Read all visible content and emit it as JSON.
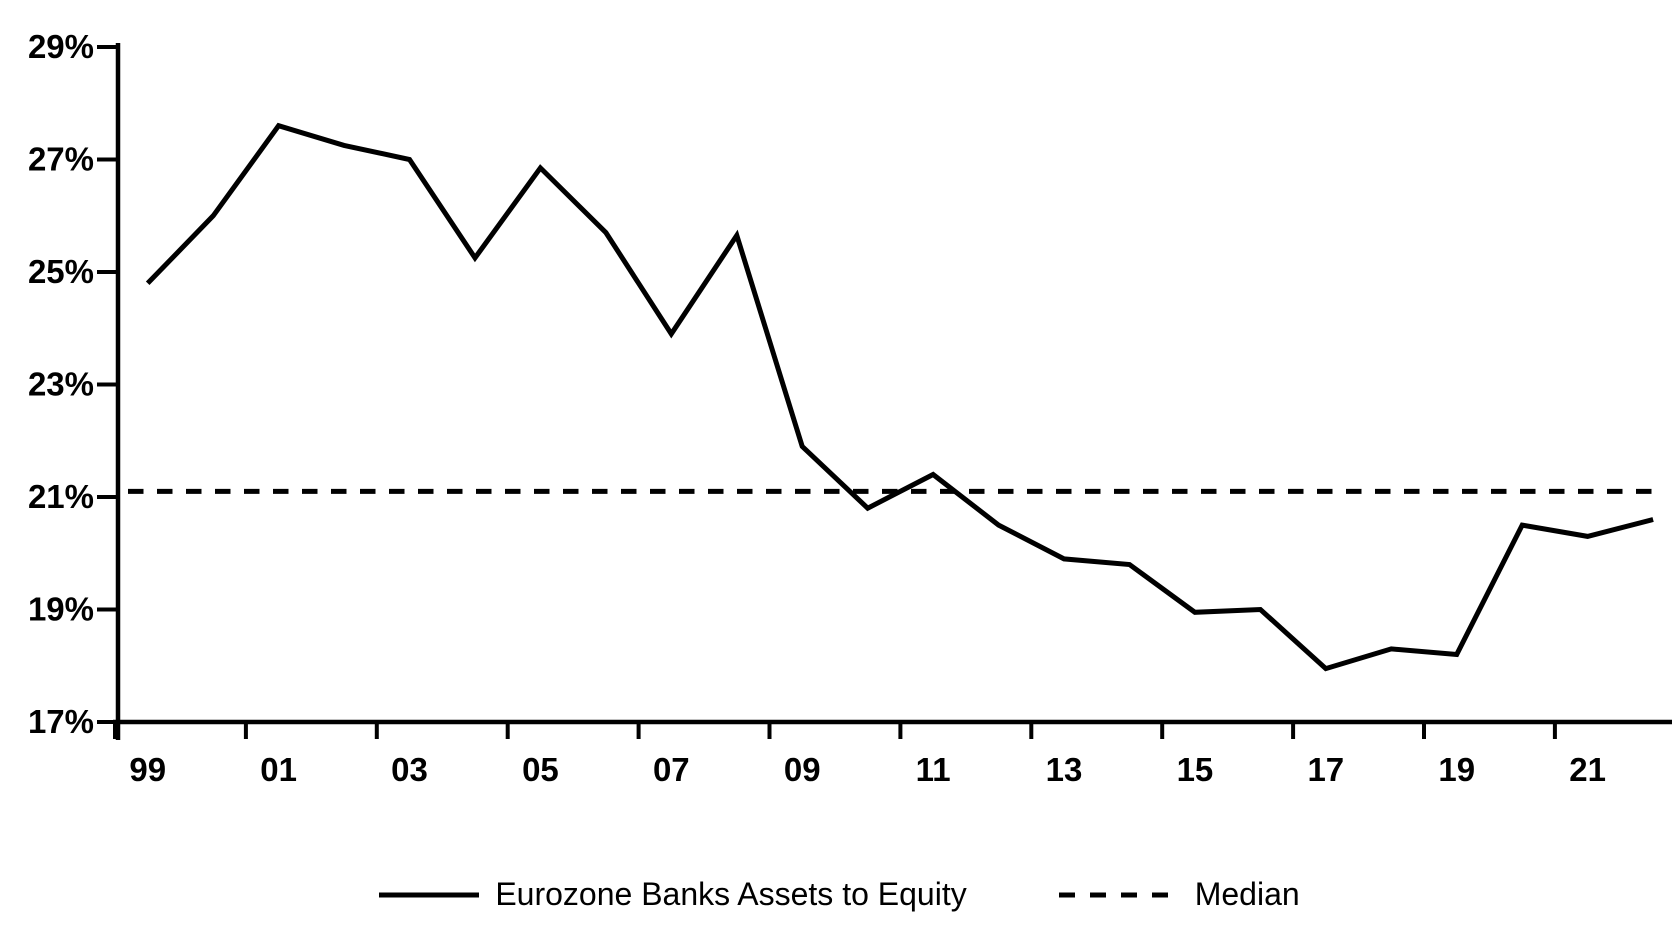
{
  "page": {
    "background_color": "#ffffff",
    "line_color": "#000000"
  },
  "chart_data": {
    "type": "line",
    "title": "",
    "xlabel": "",
    "ylabel": "",
    "grid": false,
    "ylim": [
      17,
      29
    ],
    "y_ticks": [
      29,
      27,
      25,
      23,
      21,
      19,
      17
    ],
    "y_tick_labels": [
      "29%",
      "27%",
      "25%",
      "23%",
      "21%",
      "19%",
      "17%"
    ],
    "x_tick_labels": [
      "99",
      "01",
      "03",
      "05",
      "07",
      "09",
      "11",
      "13",
      "15",
      "17",
      "19",
      "21"
    ],
    "years": [
      1999,
      2000,
      2001,
      2002,
      2003,
      2004,
      2005,
      2006,
      2007,
      2008,
      2009,
      2010,
      2011,
      2012,
      2013,
      2014,
      2015,
      2016,
      2017,
      2018,
      2019,
      2020,
      2021,
      2022
    ],
    "series": [
      {
        "name": "Eurozone Banks Assets to Equity",
        "line_style": "solid",
        "color": "#000000",
        "values": [
          24.8,
          26.0,
          27.6,
          27.25,
          27.0,
          25.25,
          26.85,
          25.7,
          23.9,
          25.65,
          21.9,
          20.8,
          21.4,
          20.5,
          19.9,
          19.8,
          18.95,
          19.0,
          17.95,
          18.3,
          18.2,
          20.5,
          20.3,
          20.6
        ]
      },
      {
        "name": "Median",
        "line_style": "dashed",
        "color": "#000000",
        "constant_value": 21.1
      }
    ],
    "legend": {
      "position": "bottom",
      "items": [
        {
          "label": "Eurozone Banks Assets to Equity",
          "line": "solid"
        },
        {
          "label": "Median",
          "line": "dashed"
        }
      ]
    }
  }
}
